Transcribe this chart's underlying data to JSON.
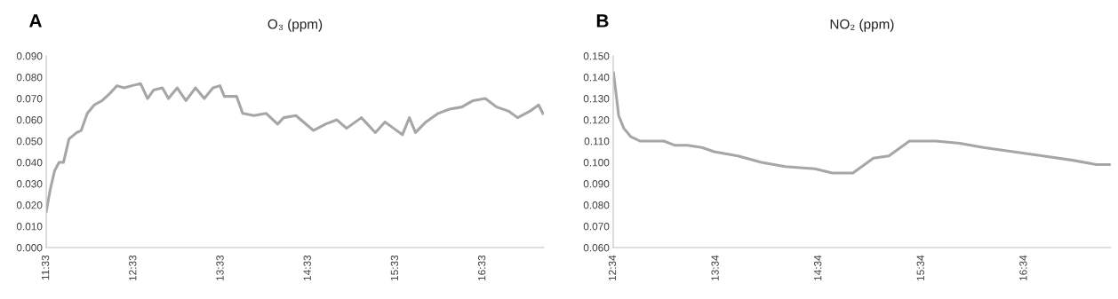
{
  "chart_data": [
    {
      "type": "line",
      "title": "O₃ (ppm)",
      "annotations": [
        "A"
      ],
      "series": [
        {
          "color": "#a6a6a6",
          "x": [
            11.55,
            11.594,
            11.645,
            11.696,
            11.747,
            11.81,
            11.9,
            11.95,
            12.02,
            12.1,
            12.19,
            12.27,
            12.36,
            12.44,
            12.53,
            12.63,
            12.71,
            12.78,
            12.88,
            12.95,
            13.05,
            13.15,
            13.26,
            13.36,
            13.46,
            13.54,
            13.59,
            13.73,
            13.8,
            13.93,
            14.07,
            14.2,
            14.27,
            14.41,
            14.61,
            14.75,
            14.88,
            14.99,
            15.16,
            15.32,
            15.43,
            15.53,
            15.63,
            15.71,
            15.78,
            15.9,
            16.04,
            16.17,
            16.31,
            16.44,
            16.58,
            16.71,
            16.85,
            16.95,
            17.09,
            17.19,
            17.24
          ],
          "values": [
            0.017,
            0.027,
            0.036,
            0.04,
            0.04,
            0.051,
            0.054,
            0.055,
            0.063,
            0.067,
            0.069,
            0.072,
            0.076,
            0.075,
            0.076,
            0.077,
            0.07,
            0.074,
            0.075,
            0.07,
            0.075,
            0.069,
            0.075,
            0.07,
            0.075,
            0.076,
            0.071,
            0.071,
            0.063,
            0.062,
            0.063,
            0.058,
            0.061,
            0.062,
            0.055,
            0.058,
            0.06,
            0.056,
            0.061,
            0.054,
            0.059,
            0.056,
            0.053,
            0.061,
            0.054,
            0.059,
            0.063,
            0.065,
            0.066,
            0.069,
            0.07,
            0.066,
            0.064,
            0.061,
            0.064,
            0.067,
            0.063
          ]
        }
      ],
      "xlim": [
        11.55,
        17.25
      ],
      "xticks": [
        {
          "value": 11.55,
          "label": "11:33"
        },
        {
          "value": 12.55,
          "label": "12:33"
        },
        {
          "value": 13.55,
          "label": "13:33"
        },
        {
          "value": 14.55,
          "label": "14:33"
        },
        {
          "value": 15.55,
          "label": "15:33"
        },
        {
          "value": 16.55,
          "label": "16:33"
        }
      ],
      "ylim": [
        0,
        0.09
      ],
      "yticks": [
        {
          "value": 0,
          "label": "0.000"
        },
        {
          "value": 0.01,
          "label": "0.010"
        },
        {
          "value": 0.02,
          "label": "0.020"
        },
        {
          "value": 0.03,
          "label": "0.030"
        },
        {
          "value": 0.04,
          "label": "0.040"
        },
        {
          "value": 0.05,
          "label": "0.050"
        },
        {
          "value": 0.06,
          "label": "0.060"
        },
        {
          "value": 0.07,
          "label": "0.070"
        },
        {
          "value": 0.08,
          "label": "0.080"
        },
        {
          "value": 0.09,
          "label": "0.090"
        }
      ],
      "grid": false
    },
    {
      "type": "line",
      "title": "NO₂ (ppm)",
      "annotations": [
        "B"
      ],
      "series": [
        {
          "color": "#a6a6a6",
          "x": [
            12.57,
            12.6,
            12.62,
            12.67,
            12.74,
            12.83,
            13.06,
            13.17,
            13.29,
            13.43,
            13.55,
            13.78,
            14.01,
            14.24,
            14.53,
            14.7,
            14.9,
            15.1,
            15.25,
            15.45,
            15.71,
            15.94,
            16.17,
            16.46,
            16.75,
            17.04,
            17.27,
            17.41
          ],
          "values": [
            0.142,
            0.13,
            0.122,
            0.116,
            0.112,
            0.11,
            0.11,
            0.108,
            0.108,
            0.107,
            0.105,
            0.103,
            0.1,
            0.098,
            0.097,
            0.095,
            0.095,
            0.102,
            0.103,
            0.11,
            0.11,
            0.109,
            0.107,
            0.105,
            0.103,
            0.101,
            0.099,
            0.099
          ]
        }
      ],
      "xlim": [
        12.567,
        17.41
      ],
      "xticks": [
        {
          "value": 12.567,
          "label": "12:34"
        },
        {
          "value": 13.567,
          "label": "13:34"
        },
        {
          "value": 14.567,
          "label": "14:34"
        },
        {
          "value": 15.567,
          "label": "15:34"
        },
        {
          "value": 16.567,
          "label": "16:34"
        }
      ],
      "ylim": [
        0.06,
        0.15
      ],
      "yticks": [
        {
          "value": 0.06,
          "label": "0.060"
        },
        {
          "value": 0.07,
          "label": "0.070"
        },
        {
          "value": 0.08,
          "label": "0.080"
        },
        {
          "value": 0.09,
          "label": "0.090"
        },
        {
          "value": 0.1,
          "label": "0.100"
        },
        {
          "value": 0.11,
          "label": "0.110"
        },
        {
          "value": 0.12,
          "label": "0.120"
        },
        {
          "value": 0.13,
          "label": "0.130"
        },
        {
          "value": 0.14,
          "label": "0.140"
        },
        {
          "value": 0.15,
          "label": "0.150"
        }
      ],
      "grid": false
    }
  ]
}
